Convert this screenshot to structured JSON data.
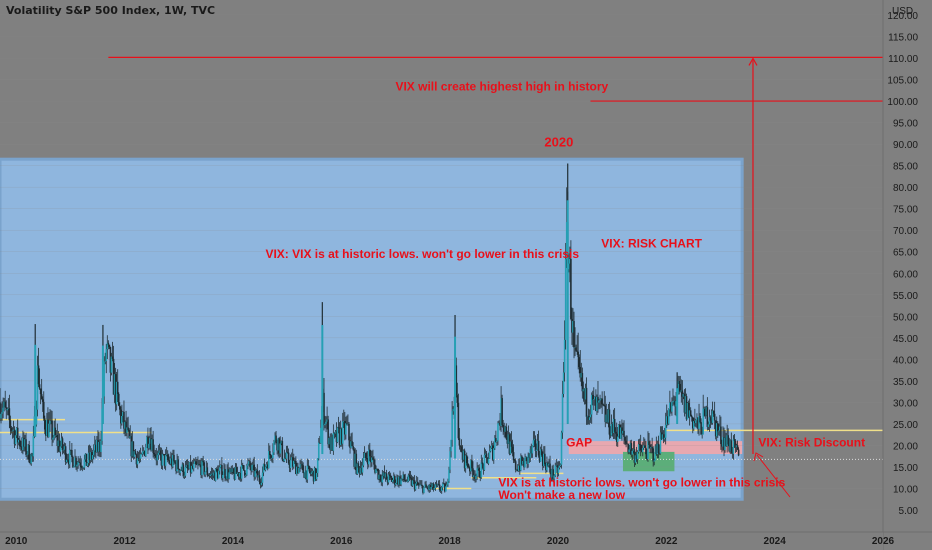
{
  "chart_data": {
    "type": "candlestick",
    "title": "Volatility S&P 500 Index, 1W, TVC",
    "currency_label": "USD",
    "y_range": [
      3,
      125
    ],
    "x_range": [
      2009.7,
      2026.0
    ],
    "y_ticks": [
      "5.00",
      "10.00",
      "15.00",
      "20.00",
      "25.00",
      "30.00",
      "35.00",
      "40.00",
      "45.00",
      "50.00",
      "55.00",
      "60.00",
      "65.00",
      "70.00",
      "75.00",
      "80.00",
      "85.00",
      "90.00",
      "95.00",
      "100.00",
      "105.00",
      "110.00",
      "115.00",
      "120.00"
    ],
    "x_ticks": [
      "2010",
      "2012",
      "2014",
      "2016",
      "2018",
      "2020",
      "2022",
      "2024",
      "2026"
    ],
    "current_price": "16.76",
    "price_tags": [
      {
        "label": "110.15",
        "value": 110.15
      },
      {
        "label": "100.00",
        "value": 100.0
      }
    ],
    "weekly_close_approx": [
      [
        2009.7,
        30
      ],
      [
        2010.0,
        22
      ],
      [
        2010.3,
        17
      ],
      [
        2010.4,
        38
      ],
      [
        2010.5,
        26
      ],
      [
        2010.8,
        20
      ],
      [
        2011.0,
        17
      ],
      [
        2011.3,
        16
      ],
      [
        2011.55,
        20
      ],
      [
        2011.65,
        42
      ],
      [
        2011.8,
        35
      ],
      [
        2011.9,
        28
      ],
      [
        2012.1,
        20
      ],
      [
        2012.3,
        16
      ],
      [
        2012.45,
        23
      ],
      [
        2012.6,
        17
      ],
      [
        2012.9,
        16
      ],
      [
        2013.1,
        14
      ],
      [
        2013.4,
        15
      ],
      [
        2013.6,
        13
      ],
      [
        2013.8,
        14
      ],
      [
        2014.0,
        13
      ],
      [
        2014.3,
        15
      ],
      [
        2014.5,
        12
      ],
      [
        2014.8,
        22
      ],
      [
        2014.95,
        17
      ],
      [
        2015.3,
        14
      ],
      [
        2015.55,
        13
      ],
      [
        2015.65,
        30
      ],
      [
        2015.8,
        20
      ],
      [
        2016.1,
        24
      ],
      [
        2016.3,
        14
      ],
      [
        2016.5,
        18
      ],
      [
        2016.7,
        13
      ],
      [
        2016.9,
        12
      ],
      [
        2017.2,
        12
      ],
      [
        2017.5,
        10
      ],
      [
        2017.8,
        10
      ],
      [
        2017.95,
        10
      ],
      [
        2018.1,
        35
      ],
      [
        2018.2,
        18
      ],
      [
        2018.5,
        13
      ],
      [
        2018.8,
        19
      ],
      [
        2018.95,
        28
      ],
      [
        2019.2,
        15
      ],
      [
        2019.4,
        16
      ],
      [
        2019.6,
        20
      ],
      [
        2019.9,
        13
      ],
      [
        2020.05,
        15
      ],
      [
        2020.17,
        70
      ],
      [
        2020.3,
        40
      ],
      [
        2020.5,
        30
      ],
      [
        2020.8,
        28
      ],
      [
        2021.0,
        24
      ],
      [
        2021.2,
        22
      ],
      [
        2021.4,
        18
      ],
      [
        2021.6,
        19
      ],
      [
        2021.8,
        18
      ],
      [
        2022.0,
        25
      ],
      [
        2022.2,
        32
      ],
      [
        2022.4,
        28
      ],
      [
        2022.6,
        24
      ],
      [
        2022.8,
        28
      ],
      [
        2023.0,
        22
      ],
      [
        2023.2,
        20
      ],
      [
        2023.35,
        17
      ]
    ],
    "spikes": [
      {
        "x": 2010.35,
        "high": 48.2,
        "low": 22
      },
      {
        "x": 2011.6,
        "high": 48.0,
        "low": 25
      },
      {
        "x": 2015.65,
        "high": 53.3,
        "low": 18
      },
      {
        "x": 2018.1,
        "high": 50.3,
        "low": 17
      },
      {
        "x": 2020.18,
        "high": 85.5,
        "low": 25
      },
      {
        "x": 2022.2,
        "high": 37,
        "low": 25
      }
    ],
    "zones": [
      {
        "name": "blue-range",
        "x": [
          2009.7,
          2023.4
        ],
        "y": [
          7.5,
          86.5
        ],
        "color": "#8fb6de"
      },
      {
        "name": "gap",
        "x": [
          2020.2,
          2023.4
        ],
        "y": [
          18,
          21
        ],
        "color": "#e8a8b0"
      },
      {
        "name": "green-box",
        "x": [
          2021.2,
          2022.15
        ],
        "y": [
          14,
          18.5
        ],
        "color": "#5cae7a"
      }
    ],
    "support_lines": [
      {
        "x": [
          2009.7,
          2010.9
        ],
        "y": 26
      },
      {
        "x": [
          2009.7,
          2012.5
        ],
        "y": 23
      },
      {
        "x": [
          2017.6,
          2018.4
        ],
        "y": 10
      },
      {
        "x": [
          2018.4,
          2019.6
        ],
        "y": 12.5
      },
      {
        "x": [
          2019.3,
          2020.1
        ],
        "y": 13.5
      },
      {
        "x": [
          2022.0,
          2026.0
        ],
        "y": 23.5
      }
    ],
    "red_hlines": [
      {
        "x": [
          2011.7,
          2026.0
        ],
        "y": 110.15
      },
      {
        "x": [
          2020.6,
          2026.0
        ],
        "y": 100.0
      }
    ],
    "red_arrow": {
      "x": 2023.6,
      "from": 18,
      "to": 110.15
    },
    "annotations": [
      {
        "text": "2020",
        "x": 2019.75,
        "y": 89.5
      },
      {
        "text": "VIX will create highest high in history",
        "x": 2017.0,
        "y": 102.5
      },
      {
        "text": "VIX: RISK CHART",
        "x": 2020.8,
        "y": 66
      },
      {
        "text": "VIX: VIX is at historic lows. won't go lower in this crisis",
        "x": 2014.6,
        "y": 63.5
      },
      {
        "text": "GAP",
        "x": 2020.15,
        "y": 19.8
      },
      {
        "text": "VIX: Risk Discount",
        "x": 2023.7,
        "y": 19.8
      },
      {
        "text": "VIX is at historic lows. won't go lower in this crisis",
        "x": 2018.9,
        "y": 10.5
      },
      {
        "text": "Won't make a new low",
        "x": 2018.9,
        "y": 7.5
      }
    ]
  }
}
